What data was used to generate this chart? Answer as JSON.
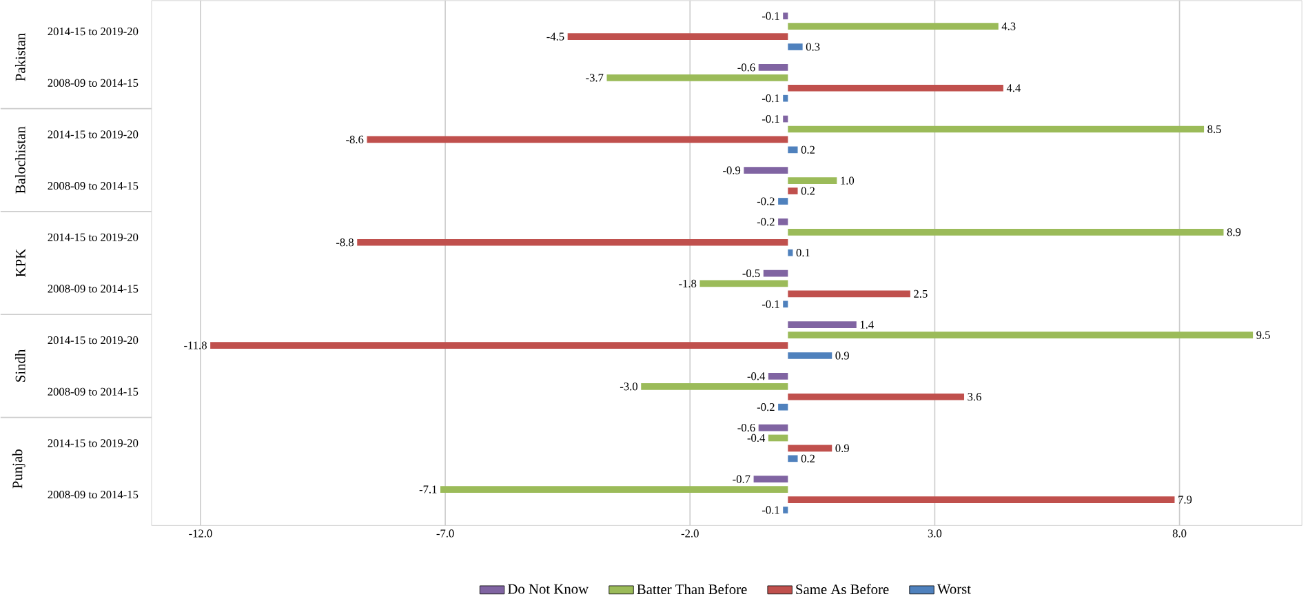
{
  "chart_data": {
    "type": "bar",
    "orientation": "horizontal",
    "categories": [
      "2014-15 to 2019-20",
      "2008-09 to 2014-15",
      "2014-15 to 2019-20",
      "2008-09 to 2014-15",
      "2014-15 to 2019-20",
      "2008-09 to 2014-15",
      "2014-15 to 2019-20",
      "2008-09 to 2014-15",
      "2014-15 to 2019-20",
      "2008-09 to 2014-15"
    ],
    "annotations": [
      "Pakistan",
      "Balochistan",
      "KPK",
      "Sindh",
      "Punjab"
    ],
    "series": [
      {
        "name": "Do Not Know",
        "color": "#8064a2",
        "values": [
          -0.1,
          -0.6,
          -0.1,
          -0.9,
          -0.2,
          -0.5,
          1.4,
          -0.4,
          -0.6,
          -0.7
        ],
        "value_labels": [
          "-0.1",
          "-0.6",
          "-0.1",
          "-0.9",
          "-0.2",
          "-0.5",
          "1.4",
          "-0.4",
          "-0.6",
          "-0.7"
        ]
      },
      {
        "name": "Batter Than Before",
        "color": "#9bbb59",
        "values": [
          4.3,
          -3.7,
          8.5,
          1.0,
          8.9,
          -1.8,
          9.5,
          -3.0,
          -0.4,
          -7.1
        ],
        "value_labels": [
          "4.3",
          "-3.7",
          "8.5",
          "1.0",
          "8.9",
          "-1.8",
          "9.5",
          "-3.0",
          "-0.4",
          "-7.1"
        ]
      },
      {
        "name": "Same As Before",
        "color": "#c0504d",
        "values": [
          -4.5,
          4.4,
          -8.6,
          0.2,
          -8.8,
          2.5,
          -11.8,
          3.6,
          0.9,
          7.9
        ],
        "value_labels": [
          "-4.5",
          "4.4",
          "-8.6",
          "0.2",
          "-8.8",
          "2.5",
          "-11.8",
          "3.6",
          "0.9",
          "7.9"
        ]
      },
      {
        "name": "Worst",
        "color": "#4f81bd",
        "values": [
          0.3,
          -0.1,
          0.2,
          -0.2,
          0.1,
          -0.1,
          0.9,
          -0.2,
          0.2,
          -0.1
        ],
        "value_labels": [
          "0.3",
          "-0.1",
          "0.2",
          "-0.2",
          "0.1",
          "-0.1",
          "0.9",
          "-0.2",
          "0.2",
          "-0.1"
        ]
      }
    ],
    "xlim": [
      -13,
      10.5
    ],
    "xticks": [
      {
        "value": -12,
        "label": "-12.0"
      },
      {
        "value": -7,
        "label": "-7.0"
      },
      {
        "value": -2,
        "label": "-2.0"
      },
      {
        "value": 3,
        "label": "3.0"
      },
      {
        "value": 8,
        "label": "8.0"
      }
    ],
    "grid": "x",
    "legend": "bottom"
  }
}
